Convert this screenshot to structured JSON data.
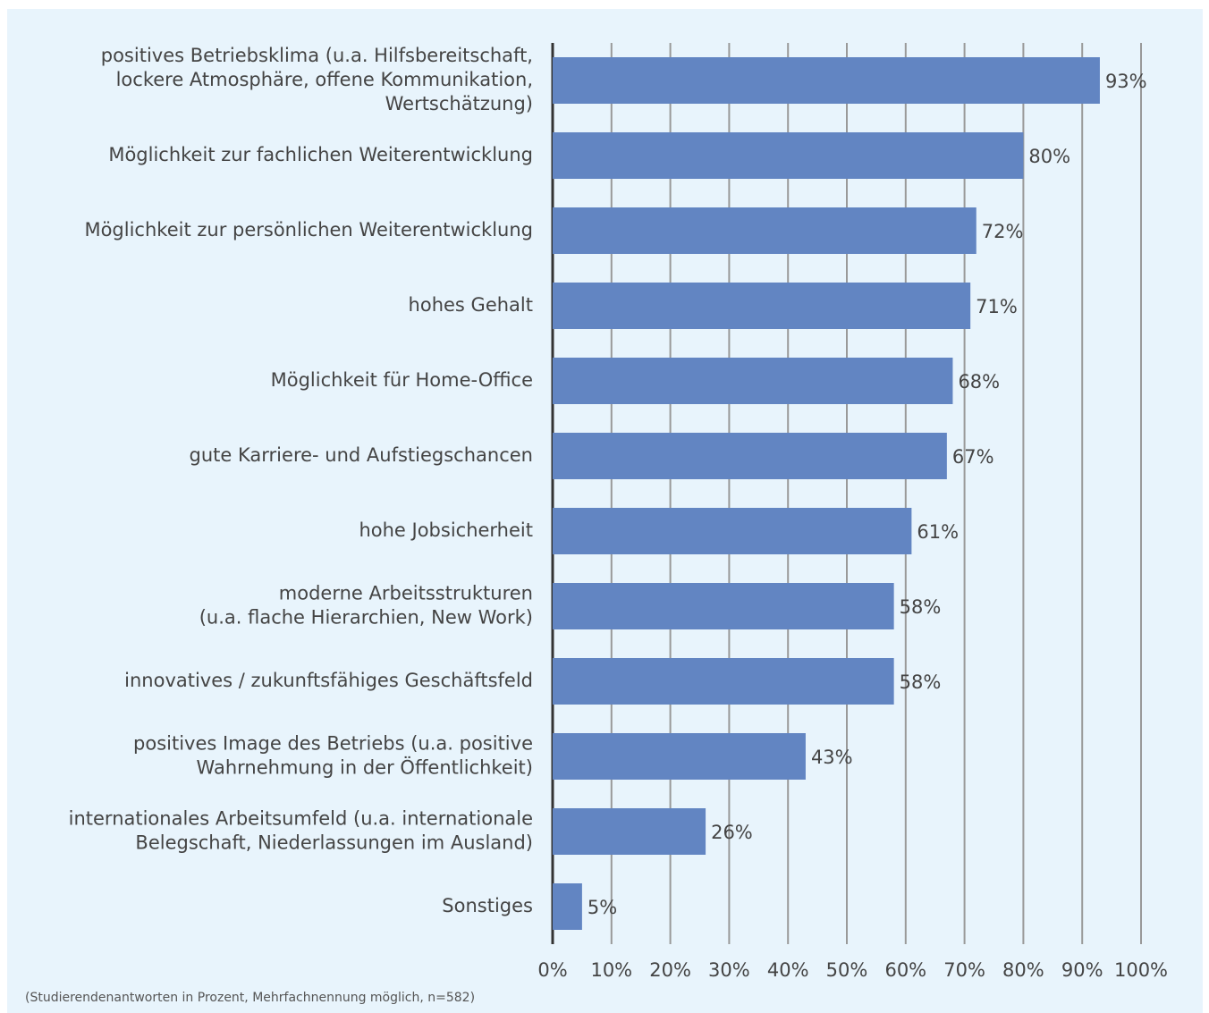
{
  "chart_data": {
    "type": "bar",
    "orientation": "horizontal",
    "categories": [
      [
        "positives Betriebsklima (u.a. Hilfsbereitschaft,",
        "lockere Atmosphäre, offene Kommunikation,",
        "Wertschätzung)"
      ],
      [
        "Möglichkeit zur fachlichen Weiterentwicklung"
      ],
      [
        "Möglichkeit zur persönlichen Weiterentwicklung"
      ],
      [
        "hohes Gehalt"
      ],
      [
        "Möglichkeit für Home-Office"
      ],
      [
        "gute Karriere- und Aufstiegschancen"
      ],
      [
        "hohe Jobsicherheit"
      ],
      [
        "moderne Arbeitsstrukturen",
        "(u.a. flache Hierarchien, New Work)"
      ],
      [
        "innovatives / zukunftsfähiges Geschäftsfeld"
      ],
      [
        "positives Image des Betriebs (u.a. positive",
        "Wahrnehmung in der Öffentlichkeit)"
      ],
      [
        "internationales Arbeitsumfeld (u.a. internationale",
        "Belegschaft, Niederlassungen im Ausland)"
      ],
      [
        "Sonstiges"
      ]
    ],
    "values": [
      93,
      80,
      72,
      71,
      68,
      67,
      61,
      58,
      58,
      43,
      26,
      5
    ],
    "value_labels": [
      "93%",
      "80%",
      "72%",
      "71%",
      "68%",
      "67%",
      "61%",
      "58%",
      "58%",
      "43%",
      "26%",
      "5%"
    ],
    "color": "#6285c2",
    "xlim": [
      0,
      100
    ],
    "xticks": [
      {
        "value": 0,
        "label": "0%"
      },
      {
        "value": 10,
        "label": "10%"
      },
      {
        "value": 20,
        "label": "20%"
      },
      {
        "value": 30,
        "label": "30%"
      },
      {
        "value": 40,
        "label": "40%"
      },
      {
        "value": 50,
        "label": "50%"
      },
      {
        "value": 60,
        "label": "60%"
      },
      {
        "value": 70,
        "label": "70%"
      },
      {
        "value": 80,
        "label": "80%"
      },
      {
        "value": 90,
        "label": "90%"
      },
      {
        "value": 100,
        "label": "100%"
      }
    ],
    "grid": true,
    "note": "(Studierendenantworten in Prozent, Mehrfachnennung möglich, n=582)"
  }
}
